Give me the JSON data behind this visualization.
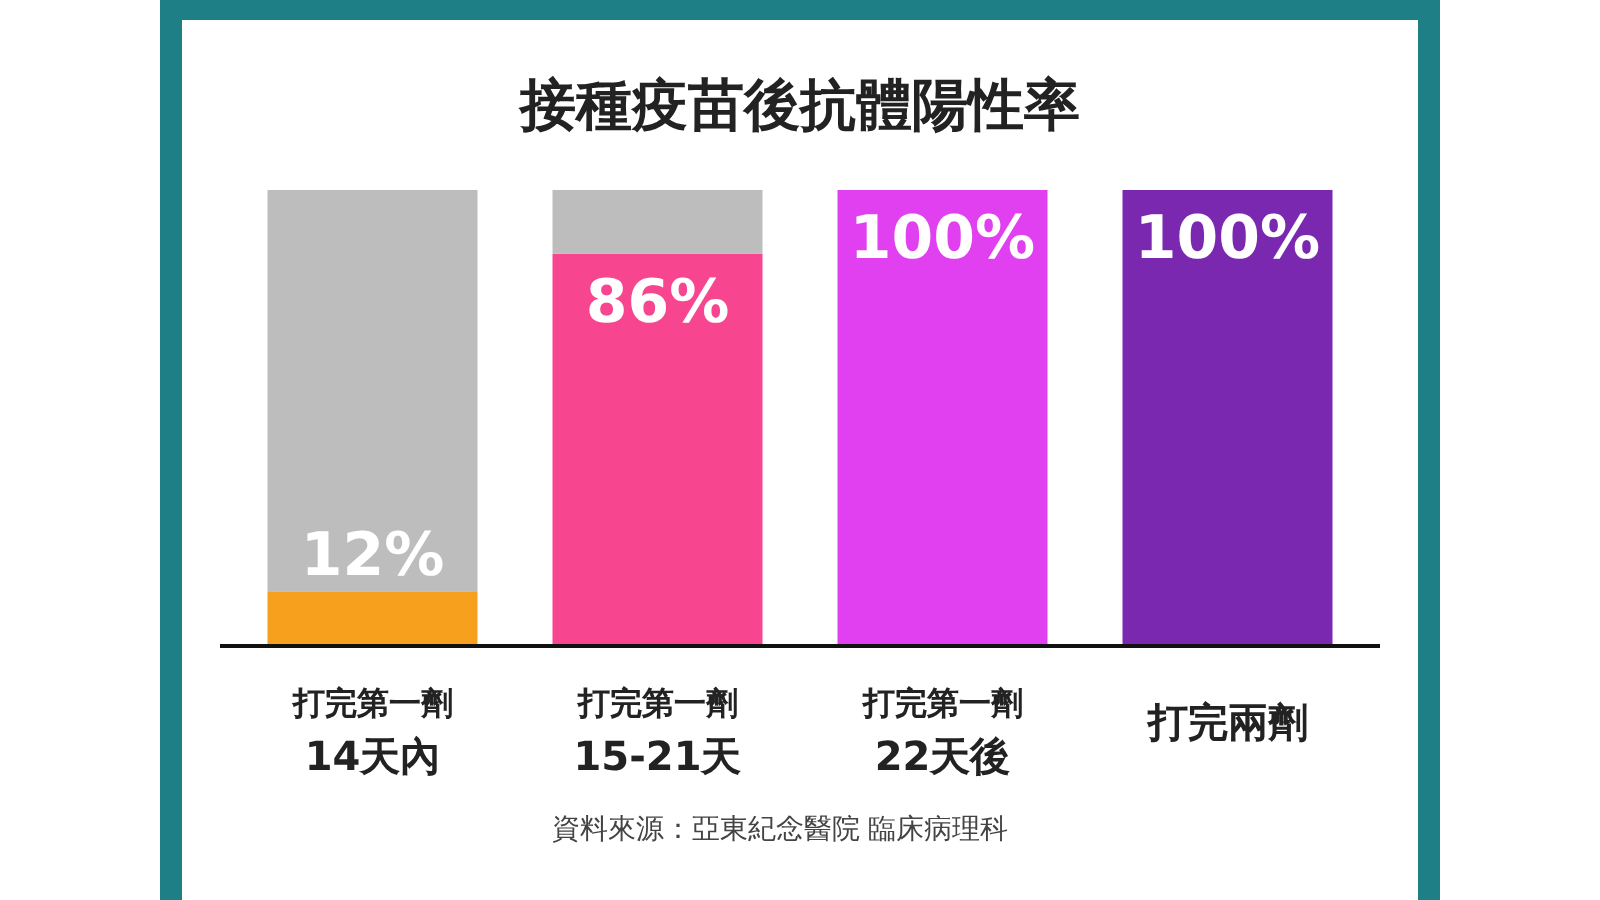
{
  "chart_data": {
    "type": "bar",
    "title": "接種疫苗後抗體陽性率",
    "stacked": true,
    "ylim": [
      0,
      100
    ],
    "categories": [
      "打完第一劑\n14天內",
      "打完第一劑\n15-21天",
      "打完第一劑\n22天後",
      "打完兩劑"
    ],
    "series": [
      {
        "colors": [
          "#f7a01e",
          "#f7458f",
          "#e040f0",
          "#7a28b0"
        ],
        "values": [
          12,
          86,
          100,
          100
        ],
        "value_labels": [
          "12%",
          "86%",
          "100%",
          "100%"
        ]
      },
      {
        "color": "#bdbdbd",
        "values": [
          88,
          14,
          0,
          0
        ]
      }
    ],
    "annotations": [
      "資料來源：亞東紀念醫院 臨床病理科"
    ]
  }
}
